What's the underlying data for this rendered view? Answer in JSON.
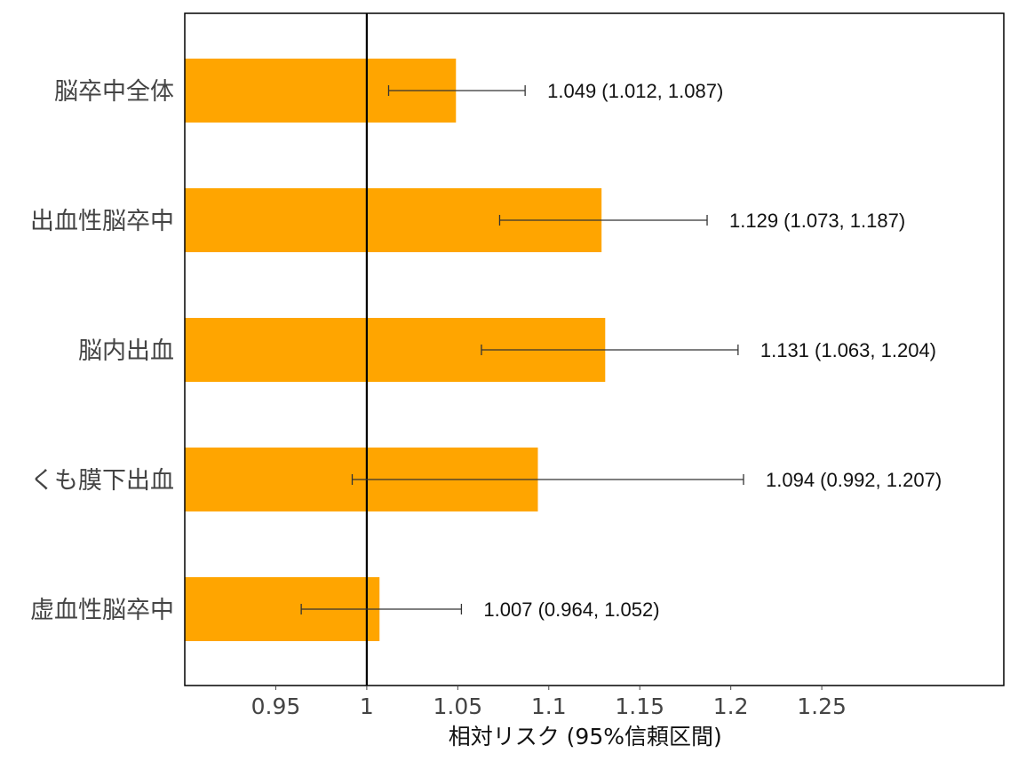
{
  "chart_data": {
    "type": "bar",
    "orientation": "horizontal",
    "categories": [
      "脳卒中全体",
      "出血性脳卒中",
      "脳内出血",
      "くも膜下出血",
      "虚血性脳卒中"
    ],
    "values": [
      1.049,
      1.129,
      1.131,
      1.094,
      1.007
    ],
    "ci_lower": [
      1.012,
      1.073,
      1.063,
      0.992,
      0.964
    ],
    "ci_upper": [
      1.087,
      1.187,
      1.204,
      1.207,
      1.052
    ],
    "data_labels": [
      "1.049 (1.012, 1.087)",
      "1.129 (1.073, 1.187)",
      "1.131 (1.063, 1.204)",
      "1.094 (0.992, 1.207)",
      "1.007 (0.964, 1.052)"
    ],
    "reference_line": 1,
    "xlabel": "相対リスク (95%信頼区間)",
    "ylabel": "",
    "title": "",
    "xlim": [
      0.9,
      1.35
    ],
    "xticks": [
      0.95,
      1,
      1.05,
      1.1,
      1.15,
      1.2,
      1.25
    ],
    "xtick_labels": [
      "0.95",
      "1",
      "1.05",
      "1.1",
      "1.15",
      "1.2",
      "1.25"
    ],
    "bar_color": "#FFA500",
    "grid": false,
    "legend": "none"
  }
}
